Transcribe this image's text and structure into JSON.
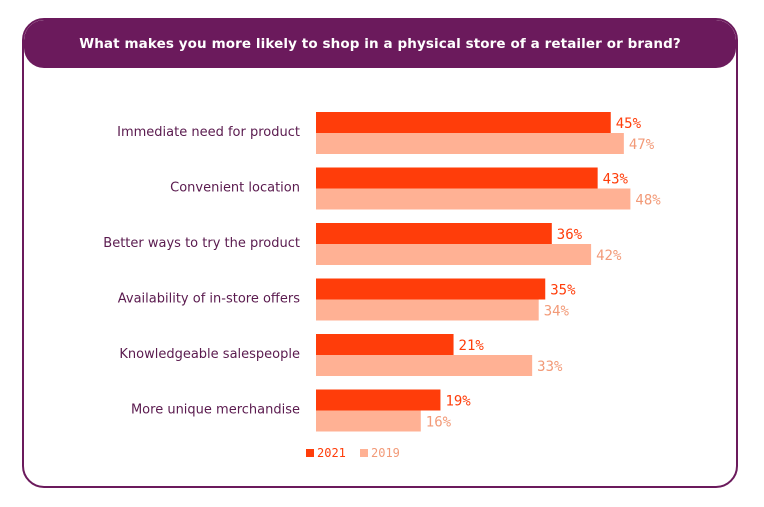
{
  "header": {
    "title": "What makes you more likely to shop in a physical store of a retailer or brand?"
  },
  "colors": {
    "frame": "#6b1a5c",
    "label": "#5a1a4e"
  },
  "chart_data": {
    "type": "bar",
    "orientation": "horizontal",
    "title": "What makes you more likely to shop in a physical store of a retailer or brand?",
    "categories": [
      "Immediate need for product",
      "Convenient location",
      "Better ways to try the product",
      "Availability of in-store offers",
      "Knowledgeable salespeople",
      "More unique merchandise"
    ],
    "series": [
      {
        "name": "2021",
        "color": "#ff3d0a",
        "values": [
          45,
          43,
          36,
          35,
          21,
          19
        ],
        "labels": [
          "45%",
          "43%",
          "36%",
          "35%",
          "21%",
          "19%"
        ]
      },
      {
        "name": "2019",
        "color": "#ffb194",
        "values": [
          47,
          48,
          42,
          34,
          33,
          16
        ],
        "labels": [
          "47%",
          "48%",
          "42%",
          "34%",
          "33%",
          "16%"
        ]
      }
    ],
    "xlim": [
      0,
      100
    ],
    "grid": false,
    "legend_position": "bottom"
  }
}
